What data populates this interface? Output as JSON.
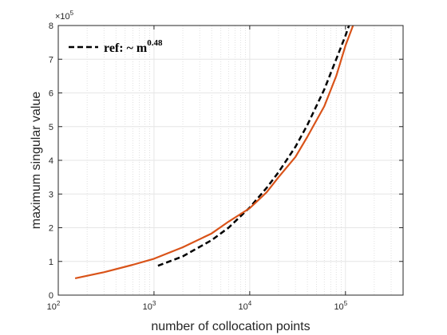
{
  "chart_data": {
    "type": "line",
    "xlabel": "number of collocation points",
    "ylabel": "maximum singular value",
    "x_scale": "log",
    "xlim": [
      100,
      400000
    ],
    "ylim": [
      0,
      800000
    ],
    "x_ticks": [
      100,
      1000,
      10000,
      100000
    ],
    "x_tick_labels": [
      {
        "base": "10",
        "exp": "2"
      },
      {
        "base": "10",
        "exp": "3"
      },
      {
        "base": "10",
        "exp": "4"
      },
      {
        "base": "10",
        "exp": "5"
      }
    ],
    "y_ticks": [
      0,
      100000,
      200000,
      300000,
      400000,
      500000,
      600000,
      700000,
      800000
    ],
    "y_tick_labels": [
      "0",
      "1",
      "2",
      "3",
      "4",
      "5",
      "6",
      "7",
      "8"
    ],
    "y_multiplier": {
      "base": "×10",
      "exp": "5"
    },
    "grid": true,
    "minor_grid_x": true,
    "legend_position": "top-left",
    "series": [
      {
        "name": "",
        "style": "solid",
        "color": "#D95319",
        "x": [
          150,
          300,
          600,
          1000,
          2000,
          4000,
          6000,
          10000,
          15000,
          20000,
          30000,
          40000,
          60000,
          80000,
          100000,
          120000
        ],
        "y": [
          50000,
          68000,
          90000,
          108000,
          142000,
          183000,
          218000,
          258000,
          305000,
          350000,
          410000,
          470000,
          560000,
          650000,
          740000,
          800000
        ]
      },
      {
        "name": "ref: ~ m",
        "name_sup": "0.48",
        "style": "dashed",
        "color": "#000000",
        "x": [
          1100,
          2000,
          4000,
          6000,
          10000,
          15000,
          20000,
          30000,
          40000,
          60000,
          80000,
          100000,
          120000
        ],
        "y": [
          87000,
          115000,
          163000,
          200000,
          260000,
          318000,
          365000,
          440000,
          505000,
          610000,
          700000,
          770000,
          835000
        ]
      }
    ]
  },
  "colors": {
    "axis": "#262626",
    "grid": "#e6e6e6",
    "minor_grid": "#cccccc"
  }
}
